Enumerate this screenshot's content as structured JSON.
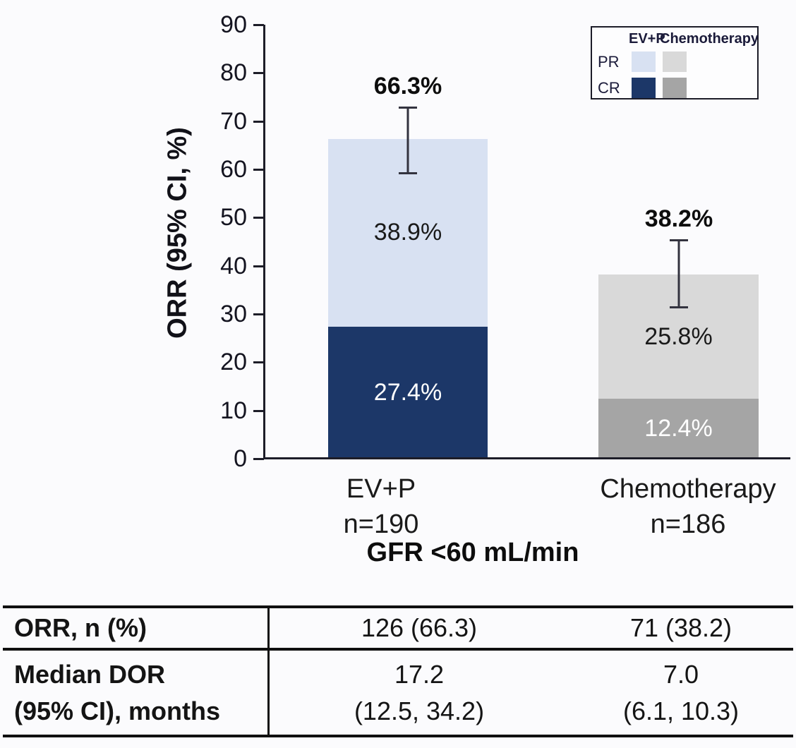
{
  "chart_data": {
    "type": "bar",
    "stacked": true,
    "title": "",
    "ylabel": "ORR (95% CI, %)",
    "xlabel": "GFR <60 mL/min",
    "ylim": [
      0,
      90
    ],
    "ytick_step": 10,
    "axis_color": "#1d1d28",
    "groups": [
      {
        "name": "EV+P",
        "n": "n=190",
        "total_pct": 66.3,
        "total_label": "66.3%",
        "ci": [
          59.0,
          73.0
        ],
        "segments": [
          {
            "name": "CR",
            "value": 27.4,
            "label": "27.4%",
            "color": "#1c3768",
            "text_color": "#ffffff"
          },
          {
            "name": "PR",
            "value": 38.9,
            "label": "38.9%",
            "color": "#d8e1f2",
            "text_color": "#1a1a1a"
          }
        ]
      },
      {
        "name": "Chemotherapy",
        "n": "n=186",
        "total_pct": 38.2,
        "total_label": "38.2%",
        "ci": [
          31.2,
          45.5
        ],
        "segments": [
          {
            "name": "CR",
            "value": 12.4,
            "label": "12.4%",
            "color": "#a5a5a5",
            "text_color": "#ffffff"
          },
          {
            "name": "PR",
            "value": 25.8,
            "label": "25.8%",
            "color": "#d9d9d9",
            "text_color": "#1a1a1a"
          }
        ]
      }
    ],
    "legend": {
      "position": "top-right",
      "col_headers": [
        "EV+P",
        "Chemotherapy"
      ],
      "rows": [
        {
          "label": "PR",
          "colors": [
            "#d8e1f2",
            "#d9d9d9"
          ]
        },
        {
          "label": "CR",
          "colors": [
            "#1c3768",
            "#a5a5a5"
          ]
        }
      ]
    }
  },
  "table": {
    "rows": [
      {
        "label": "ORR, n (%)",
        "values": [
          "126 (66.3)",
          "71 (38.2)"
        ]
      },
      {
        "label_line1": "Median DOR",
        "label_line2": "(95% CI), months",
        "values": [
          {
            "line1": "17.2",
            "line2": "(12.5, 34.2)"
          },
          {
            "line1": "7.0",
            "line2": "(6.1, 10.3)"
          }
        ]
      }
    ]
  }
}
